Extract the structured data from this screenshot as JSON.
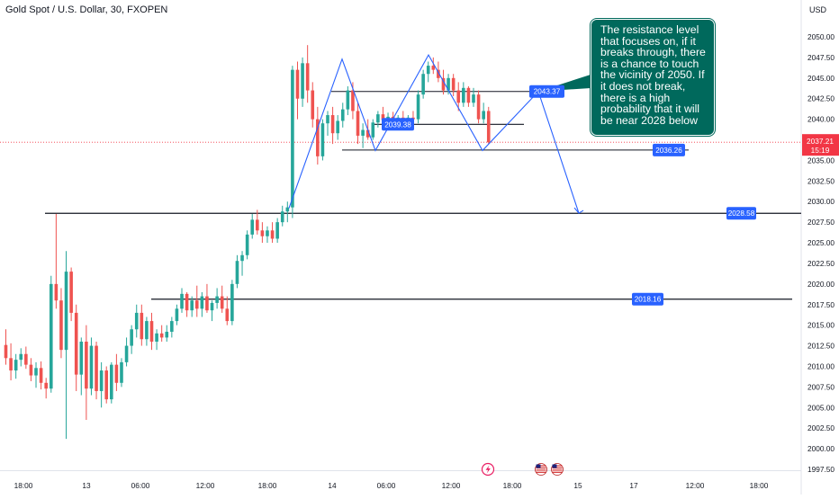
{
  "header": {
    "title": "Gold Spot / U.S. Dollar, 30, FXOPEN",
    "currency": "USD"
  },
  "note_text": "The resistance level\nthat focuses on, if it\nbreaks through, there\nis a chance to touch\nthe vicinity of 2050. If\nit does not break,\nthere is a high\nprobability that it will\nbe near 2028 below",
  "colors": {
    "up": "#26a69a",
    "down": "#ef5350",
    "line": "#131722",
    "projection": "#2962ff",
    "label_bg": "#2962ff",
    "note_bg": "#00695c",
    "price_tag": "#f23645"
  },
  "chart_data": {
    "type": "candlestick",
    "timeframe": "30",
    "y_axis": {
      "min": 1997.5,
      "max": 2052.5,
      "ticks": [
        "2050.00",
        "2047.50",
        "2045.00",
        "2042.50",
        "2040.00",
        "2037.50",
        "2035.00",
        "2032.50",
        "2030.00",
        "2027.50",
        "2025.00",
        "2022.50",
        "2020.00",
        "2017.50",
        "2015.00",
        "2012.50",
        "2010.00",
        "2007.50",
        "2005.00",
        "2002.50",
        "2000.00",
        "1997.50"
      ]
    },
    "x_axis": {
      "ticks": [
        "18:00",
        "13",
        "06:00",
        "12:00",
        "18:00",
        "14",
        "06:00",
        "12:00",
        "18:00",
        "15",
        "17",
        "12:00",
        "18:00"
      ]
    },
    "current_price": {
      "value": 2037.21,
      "label": "2037.21",
      "countdown": "15:19"
    },
    "levels": [
      {
        "label": "2028.58",
        "value": 2028.58
      },
      {
        "label": "2018.16",
        "value": 2018.16
      },
      {
        "label": "2036.26",
        "value": 2036.26
      },
      {
        "label": "2043.37",
        "value": 2043.37
      },
      {
        "label": "2039.38",
        "value": 2039.38
      }
    ],
    "candles": [
      {
        "o": 2012.6,
        "h": 2014.5,
        "l": 2010.2,
        "c": 2011.0
      },
      {
        "o": 2011.0,
        "h": 2012.8,
        "l": 2008.3,
        "c": 2009.5
      },
      {
        "o": 2009.5,
        "h": 2011.5,
        "l": 2008.5,
        "c": 2010.8
      },
      {
        "o": 2010.8,
        "h": 2012.2,
        "l": 2010.0,
        "c": 2011.5
      },
      {
        "o": 2011.5,
        "h": 2012.4,
        "l": 2009.7,
        "c": 2010.2
      },
      {
        "o": 2010.2,
        "h": 2011.0,
        "l": 2008.2,
        "c": 2008.9
      },
      {
        "o": 2008.9,
        "h": 2010.5,
        "l": 2007.4,
        "c": 2009.8
      },
      {
        "o": 2009.8,
        "h": 2010.6,
        "l": 2007.2,
        "c": 2008.0
      },
      {
        "o": 2008.0,
        "h": 2008.6,
        "l": 2006.1,
        "c": 2007.3
      },
      {
        "o": 2007.3,
        "h": 2021.0,
        "l": 2006.8,
        "c": 2020.0
      },
      {
        "o": 2020.0,
        "h": 2028.5,
        "l": 2017.0,
        "c": 2018.0
      },
      {
        "o": 2018.0,
        "h": 2019.5,
        "l": 2011.0,
        "c": 2012.0
      },
      {
        "o": 2012.0,
        "h": 2024.0,
        "l": 2001.2,
        "c": 2021.5
      },
      {
        "o": 2021.5,
        "h": 2022.0,
        "l": 2015.5,
        "c": 2016.5
      },
      {
        "o": 2016.5,
        "h": 2017.5,
        "l": 2007.0,
        "c": 2009.0
      },
      {
        "o": 2009.0,
        "h": 2013.5,
        "l": 2006.5,
        "c": 2013.0
      },
      {
        "o": 2013.0,
        "h": 2015.0,
        "l": 2003.5,
        "c": 2007.3
      },
      {
        "o": 2007.3,
        "h": 2013.5,
        "l": 2006.5,
        "c": 2012.5
      },
      {
        "o": 2012.5,
        "h": 2013.0,
        "l": 2006.0,
        "c": 2007.0
      },
      {
        "o": 2007.0,
        "h": 2010.5,
        "l": 2005.0,
        "c": 2009.5
      },
      {
        "o": 2009.5,
        "h": 2010.0,
        "l": 2005.5,
        "c": 2006.0
      },
      {
        "o": 2006.0,
        "h": 2010.5,
        "l": 2005.5,
        "c": 2010.2
      },
      {
        "o": 2010.2,
        "h": 2011.5,
        "l": 2007.0,
        "c": 2008.0
      },
      {
        "o": 2008.0,
        "h": 2011.0,
        "l": 2007.5,
        "c": 2010.5
      },
      {
        "o": 2010.5,
        "h": 2013.5,
        "l": 2010.0,
        "c": 2012.5
      },
      {
        "o": 2012.5,
        "h": 2015.0,
        "l": 2011.5,
        "c": 2014.5
      },
      {
        "o": 2014.5,
        "h": 2017.5,
        "l": 2013.5,
        "c": 2016.5
      },
      {
        "o": 2016.5,
        "h": 2017.5,
        "l": 2012.5,
        "c": 2013.3
      },
      {
        "o": 2013.3,
        "h": 2016.0,
        "l": 2012.5,
        "c": 2015.5
      },
      {
        "o": 2015.5,
        "h": 2016.5,
        "l": 2012.0,
        "c": 2013.0
      },
      {
        "o": 2013.0,
        "h": 2014.5,
        "l": 2012.0,
        "c": 2014.0
      },
      {
        "o": 2014.0,
        "h": 2015.0,
        "l": 2013.0,
        "c": 2013.5
      },
      {
        "o": 2013.5,
        "h": 2015.0,
        "l": 2013.0,
        "c": 2014.2
      },
      {
        "o": 2014.2,
        "h": 2016.0,
        "l": 2013.5,
        "c": 2015.5
      },
      {
        "o": 2015.5,
        "h": 2017.5,
        "l": 2015.0,
        "c": 2017.0
      },
      {
        "o": 2017.0,
        "h": 2019.5,
        "l": 2016.5,
        "c": 2018.8
      },
      {
        "o": 2018.8,
        "h": 2019.0,
        "l": 2016.0,
        "c": 2016.8
      },
      {
        "o": 2016.8,
        "h": 2018.5,
        "l": 2016.0,
        "c": 2018.0
      },
      {
        "o": 2018.0,
        "h": 2019.8,
        "l": 2016.0,
        "c": 2017.0
      },
      {
        "o": 2017.0,
        "h": 2019.0,
        "l": 2016.0,
        "c": 2018.5
      },
      {
        "o": 2018.5,
        "h": 2020.0,
        "l": 2016.5,
        "c": 2016.8
      },
      {
        "o": 2016.8,
        "h": 2018.0,
        "l": 2015.5,
        "c": 2017.7
      },
      {
        "o": 2017.7,
        "h": 2019.5,
        "l": 2017.0,
        "c": 2018.5
      },
      {
        "o": 2018.5,
        "h": 2019.8,
        "l": 2016.5,
        "c": 2017.0
      },
      {
        "o": 2017.0,
        "h": 2018.5,
        "l": 2015.0,
        "c": 2015.5
      },
      {
        "o": 2015.5,
        "h": 2020.5,
        "l": 2015.0,
        "c": 2020.0
      },
      {
        "o": 2020.0,
        "h": 2023.5,
        "l": 2019.5,
        "c": 2022.8
      },
      {
        "o": 2022.8,
        "h": 2024.0,
        "l": 2021.0,
        "c": 2023.5
      },
      {
        "o": 2023.5,
        "h": 2026.5,
        "l": 2023.0,
        "c": 2026.0
      },
      {
        "o": 2026.0,
        "h": 2028.5,
        "l": 2025.5,
        "c": 2027.8
      },
      {
        "o": 2027.8,
        "h": 2029.0,
        "l": 2026.0,
        "c": 2026.5
      },
      {
        "o": 2026.5,
        "h": 2027.5,
        "l": 2025.0,
        "c": 2025.8
      },
      {
        "o": 2025.8,
        "h": 2027.0,
        "l": 2025.0,
        "c": 2026.5
      },
      {
        "o": 2026.5,
        "h": 2027.5,
        "l": 2025.0,
        "c": 2025.5
      },
      {
        "o": 2025.5,
        "h": 2028.0,
        "l": 2025.0,
        "c": 2027.5
      },
      {
        "o": 2027.5,
        "h": 2029.5,
        "l": 2027.0,
        "c": 2028.8
      },
      {
        "o": 2028.8,
        "h": 2030.0,
        "l": 2027.5,
        "c": 2029.3
      },
      {
        "o": 2029.3,
        "h": 2046.5,
        "l": 2028.0,
        "c": 2046.0
      },
      {
        "o": 2046.0,
        "h": 2047.0,
        "l": 2040.0,
        "c": 2042.5
      },
      {
        "o": 2042.5,
        "h": 2047.5,
        "l": 2041.5,
        "c": 2046.8
      },
      {
        "o": 2046.8,
        "h": 2049.0,
        "l": 2042.0,
        "c": 2043.5
      },
      {
        "o": 2043.5,
        "h": 2044.5,
        "l": 2039.0,
        "c": 2040.0
      },
      {
        "o": 2040.0,
        "h": 2041.5,
        "l": 2034.5,
        "c": 2035.5
      },
      {
        "o": 2035.5,
        "h": 2040.0,
        "l": 2035.0,
        "c": 2039.5
      },
      {
        "o": 2039.5,
        "h": 2041.0,
        "l": 2038.0,
        "c": 2040.5
      },
      {
        "o": 2040.5,
        "h": 2041.5,
        "l": 2037.0,
        "c": 2038.3
      },
      {
        "o": 2038.3,
        "h": 2040.5,
        "l": 2037.5,
        "c": 2039.8
      },
      {
        "o": 2039.8,
        "h": 2042.0,
        "l": 2039.0,
        "c": 2041.2
      },
      {
        "o": 2041.2,
        "h": 2044.0,
        "l": 2040.5,
        "c": 2043.5
      },
      {
        "o": 2043.5,
        "h": 2044.5,
        "l": 2040.0,
        "c": 2041.0
      },
      {
        "o": 2041.0,
        "h": 2042.0,
        "l": 2037.0,
        "c": 2038.0
      },
      {
        "o": 2038.0,
        "h": 2039.5,
        "l": 2036.5,
        "c": 2038.7
      },
      {
        "o": 2038.7,
        "h": 2040.0,
        "l": 2037.5,
        "c": 2037.8
      },
      {
        "o": 2037.8,
        "h": 2040.0,
        "l": 2037.5,
        "c": 2039.6
      },
      {
        "o": 2039.6,
        "h": 2041.0,
        "l": 2039.0,
        "c": 2040.6
      },
      {
        "o": 2040.6,
        "h": 2041.5,
        "l": 2039.5,
        "c": 2039.9
      },
      {
        "o": 2039.9,
        "h": 2040.8,
        "l": 2039.0,
        "c": 2040.3
      },
      {
        "o": 2040.3,
        "h": 2040.9,
        "l": 2039.5,
        "c": 2039.8
      },
      {
        "o": 2039.8,
        "h": 2040.5,
        "l": 2039.2,
        "c": 2040.2
      },
      {
        "o": 2040.2,
        "h": 2041.0,
        "l": 2039.5,
        "c": 2039.7
      },
      {
        "o": 2039.7,
        "h": 2040.5,
        "l": 2039.2,
        "c": 2040.2
      },
      {
        "o": 2040.2,
        "h": 2041.0,
        "l": 2039.5,
        "c": 2040.0
      },
      {
        "o": 2040.0,
        "h": 2043.5,
        "l": 2039.5,
        "c": 2043.0
      },
      {
        "o": 2043.0,
        "h": 2046.0,
        "l": 2042.5,
        "c": 2045.5
      },
      {
        "o": 2045.5,
        "h": 2047.0,
        "l": 2044.5,
        "c": 2046.5
      },
      {
        "o": 2046.5,
        "h": 2047.5,
        "l": 2045.5,
        "c": 2046.0
      },
      {
        "o": 2046.0,
        "h": 2047.0,
        "l": 2044.5,
        "c": 2045.0
      },
      {
        "o": 2045.0,
        "h": 2046.0,
        "l": 2043.0,
        "c": 2043.5
      },
      {
        "o": 2043.5,
        "h": 2045.5,
        "l": 2043.0,
        "c": 2045.0
      },
      {
        "o": 2045.0,
        "h": 2045.5,
        "l": 2042.8,
        "c": 2043.5
      },
      {
        "o": 2043.5,
        "h": 2044.5,
        "l": 2041.0,
        "c": 2042.0
      },
      {
        "o": 2042.0,
        "h": 2044.5,
        "l": 2041.5,
        "c": 2043.8
      },
      {
        "o": 2043.8,
        "h": 2044.0,
        "l": 2041.5,
        "c": 2042.0
      },
      {
        "o": 2042.0,
        "h": 2043.8,
        "l": 2041.5,
        "c": 2043.0
      },
      {
        "o": 2043.0,
        "h": 2043.5,
        "l": 2039.5,
        "c": 2040.0
      },
      {
        "o": 2040.0,
        "h": 2042.0,
        "l": 2039.5,
        "c": 2041.0
      },
      {
        "o": 2041.0,
        "h": 2041.5,
        "l": 2037.0,
        "c": 2037.2
      }
    ]
  }
}
